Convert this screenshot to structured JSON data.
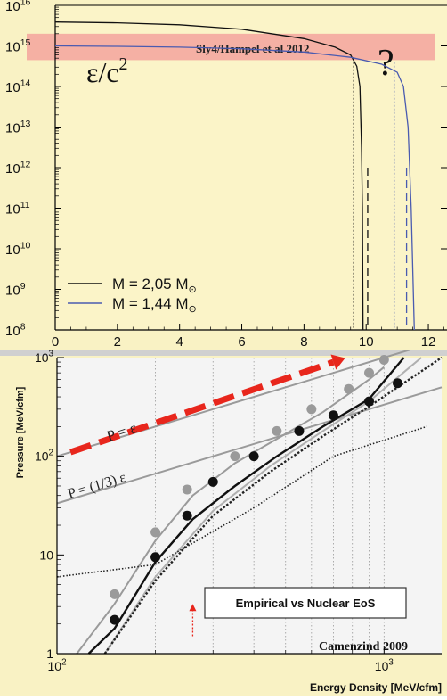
{
  "chart_data": [
    {
      "type": "line",
      "y_scale": "log",
      "xlim": [
        0,
        12.6
      ],
      "ylim_exponents": [
        8,
        16
      ],
      "x_ticks": [
        "0",
        "2",
        "4",
        "6",
        "8",
        "10",
        "12"
      ],
      "y_ticks": [
        {
          "base": "10",
          "exp": "16"
        },
        {
          "base": "10",
          "exp": "15"
        },
        {
          "base": "10",
          "exp": "14"
        },
        {
          "base": "10",
          "exp": "13"
        },
        {
          "base": "10",
          "exp": "12"
        },
        {
          "base": "10",
          "exp": "11"
        },
        {
          "base": "10",
          "exp": "10"
        },
        {
          "base": "10",
          "exp": "9"
        },
        {
          "base": "10",
          "exp": "8"
        }
      ],
      "band": {
        "label": "Sly4/Hampel et al 2012",
        "y_exponents": [
          14.65,
          15.3
        ],
        "color": "#f4a9a0"
      },
      "question_mark": "?",
      "curve_label": {
        "main": "ε/c",
        "sup": "2"
      },
      "series": [
        {
          "legend_text": "M = 2,05 M",
          "color": "#111111",
          "points": [
            [
              0,
              15.59
            ],
            [
              2,
              15.57
            ],
            [
              4,
              15.52
            ],
            [
              6,
              15.41
            ],
            [
              8,
              15.18
            ],
            [
              9,
              14.97
            ],
            [
              9.5,
              14.78
            ],
            [
              9.7,
              14.5
            ],
            [
              9.8,
              14.0
            ],
            [
              9.85,
              12.5
            ],
            [
              9.88,
              11.0
            ],
            [
              9.9,
              8.0
            ]
          ],
          "dotted_x": 9.6,
          "dashed_x": 10.05
        },
        {
          "legend_text": "M = 1,44 M",
          "color": "#4a5bb0",
          "points": [
            [
              0,
              15.0
            ],
            [
              2,
              14.99
            ],
            [
              4,
              14.97
            ],
            [
              6,
              14.93
            ],
            [
              8,
              14.85
            ],
            [
              9.5,
              14.72
            ],
            [
              10.5,
              14.55
            ],
            [
              11.0,
              14.35
            ],
            [
              11.2,
              14.0
            ],
            [
              11.35,
              13.0
            ],
            [
              11.45,
              11.0
            ],
            [
              11.55,
              8.0
            ]
          ],
          "dotted_x": 10.9,
          "dashed_x": 11.3
        }
      ]
    },
    {
      "type": "line",
      "x_scale": "log",
      "y_scale": "log",
      "xlim": [
        100,
        1500
      ],
      "ylim": [
        1,
        1000
      ],
      "xlabel": "Energy Density [MeV/cfm]",
      "ylabel": "Pressure [MeV/cfm]",
      "x_ticks": [
        {
          "value": 100,
          "base": "10",
          "exp": "2"
        },
        {
          "value": 1000,
          "base": "10",
          "exp": "3"
        }
      ],
      "y_ticks": [
        {
          "value": 1000,
          "label": "10",
          "sup": "3"
        },
        {
          "value": 100,
          "label": "10",
          "sup": "2"
        },
        {
          "value": 10,
          "label": "10",
          "sup": ""
        },
        {
          "value": 1,
          "label": "1",
          "sup": ""
        }
      ],
      "annotations": {
        "p_eq_e": "P =  ε",
        "p_eq_third": "P = (1/3) ε",
        "box_text": "Empirical vs Nuclear EoS",
        "credit": "Camenzind 2009"
      },
      "lines": [
        {
          "name": "P = e",
          "color": "#9a9a9a",
          "points": [
            [
              100,
              100
            ],
            [
              1500,
              1500
            ]
          ]
        },
        {
          "name": "P = e/3",
          "color": "#9a9a9a",
          "points": [
            [
              100,
              33.3
            ],
            [
              1500,
              500
            ]
          ]
        },
        {
          "name": "gray-curve",
          "color": "#9a9a9a",
          "points": [
            [
              115,
              1
            ],
            [
              150,
              3.2
            ],
            [
              200,
              14
            ],
            [
              260,
              40
            ],
            [
              350,
              85
            ],
            [
              470,
              150
            ],
            [
              650,
              280
            ],
            [
              900,
              600
            ],
            [
              1000,
              800
            ]
          ]
        },
        {
          "name": "black-curve",
          "color": "#111111",
          "points": [
            [
              125,
              1
            ],
            [
              150,
              1.8
            ],
            [
              200,
              8.5
            ],
            [
              260,
              23
            ],
            [
              350,
              50
            ],
            [
              470,
              100
            ],
            [
              650,
              200
            ],
            [
              900,
              380
            ],
            [
              1150,
              1000
            ]
          ]
        },
        {
          "name": "light-gray-curve",
          "color": "#b0b0b0",
          "points": [
            [
              140,
              1
            ],
            [
              200,
              6
            ],
            [
              300,
              28
            ],
            [
              450,
              80
            ],
            [
              650,
              180
            ],
            [
              900,
              360
            ],
            [
              1200,
              800
            ],
            [
              1300,
              1000
            ]
          ]
        },
        {
          "name": "dotted-thick",
          "color": "#222222",
          "dash": "2,2",
          "points": [
            [
              140,
              1
            ],
            [
              200,
              5.5
            ],
            [
              300,
              25
            ],
            [
              450,
              70
            ],
            [
              650,
              160
            ],
            [
              900,
              320
            ],
            [
              1500,
              1000
            ]
          ]
        },
        {
          "name": "dotted-thin",
          "color": "#222222",
          "dash": "2,2",
          "points": [
            [
              100,
              6
            ],
            [
              200,
              8
            ],
            [
              400,
              30
            ],
            [
              700,
              100
            ],
            [
              1350,
              200
            ]
          ]
        }
      ],
      "markers_gray": [
        [
          150,
          4
        ],
        [
          200,
          17
        ],
        [
          250,
          46
        ],
        [
          350,
          100
        ],
        [
          470,
          180
        ],
        [
          600,
          300
        ],
        [
          780,
          480
        ],
        [
          900,
          700
        ],
        [
          1000,
          950
        ]
      ],
      "markers_black": [
        [
          150,
          2.2
        ],
        [
          200,
          9.5
        ],
        [
          250,
          25
        ],
        [
          300,
          55
        ],
        [
          400,
          100
        ],
        [
          550,
          180
        ],
        [
          700,
          260
        ],
        [
          900,
          360
        ],
        [
          1100,
          550
        ]
      ],
      "red_arrow": {
        "from": [
          110,
          110
        ],
        "to": [
          700,
          900
        ],
        "color": "#e8261c"
      },
      "red_small_arrow": {
        "x": 260,
        "from_y": 1.5,
        "to_y": 3,
        "color": "#e8261c"
      },
      "vgrid_values": [
        100,
        200,
        300,
        400,
        500,
        600,
        700,
        800,
        900,
        1000
      ]
    }
  ]
}
